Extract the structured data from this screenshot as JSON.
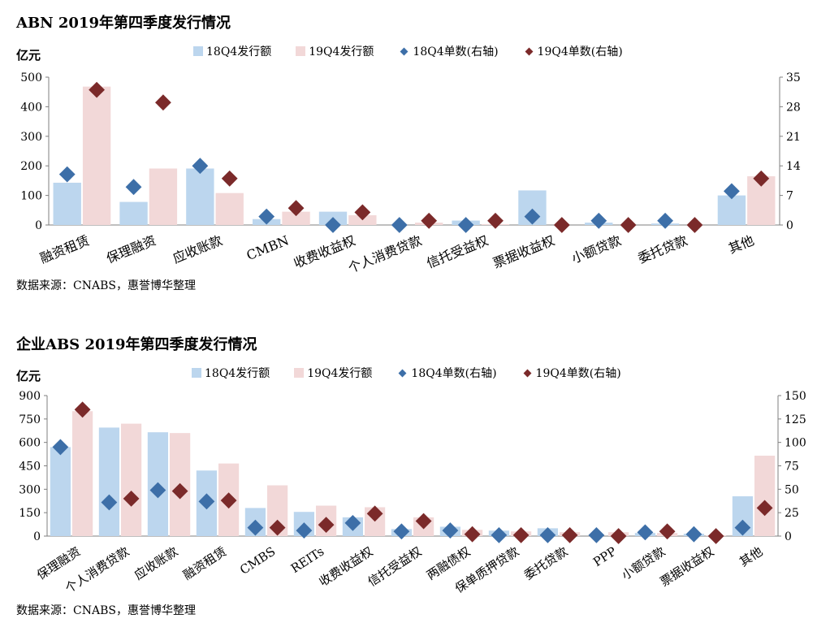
{
  "charts": [
    {
      "title": "ABN 2019年第四季度发行情况",
      "unit": "亿元",
      "source": "数据来源：CNABS，惠誉博华整理",
      "legend": [
        "18Q4发行额",
        "19Q4发行额",
        "18Q4单数(右轴)",
        "19Q4单数(右轴)"
      ]
    },
    {
      "title": "企业ABS 2019年第四季度发行情况",
      "unit": "亿元",
      "source": "数据来源：CNABS，惠誉博华整理",
      "legend": [
        "18Q4发行额",
        "19Q4发行额",
        "18Q4单数(右轴)",
        "19Q4单数(右轴)"
      ]
    }
  ],
  "colors": {
    "bar18": "#bcd6ee",
    "bar19": "#f2d8d8",
    "dot18": "#3d6fa8",
    "dot19": "#7b2a2a"
  },
  "chart_data": [
    {
      "type": "bar",
      "title": "ABN 2019年第四季度发行情况",
      "ylabel": "亿元",
      "categories": [
        "融资租赁",
        "保理融资",
        "应收账款",
        "CMBN",
        "收费收益权",
        "个人消费贷款",
        "信托受益权",
        "票据收益权",
        "小额贷款",
        "委托贷款",
        "其他"
      ],
      "series": [
        {
          "name": "18Q4发行额",
          "type": "bar",
          "axis": "left",
          "values": [
            143,
            78,
            191,
            20,
            45,
            0,
            15,
            117,
            8,
            5,
            100
          ]
        },
        {
          "name": "19Q4发行额",
          "type": "bar",
          "axis": "left",
          "values": [
            468,
            191,
            108,
            45,
            33,
            8,
            3,
            0,
            0,
            0,
            165
          ]
        },
        {
          "name": "18Q4单数(右轴)",
          "type": "scatter",
          "axis": "right",
          "values": [
            12,
            9,
            14,
            2,
            0,
            0,
            0,
            2,
            1,
            1,
            8
          ]
        },
        {
          "name": "19Q4单数(右轴)",
          "type": "scatter",
          "axis": "right",
          "values": [
            32,
            29,
            11,
            4,
            3,
            1,
            1,
            0,
            0,
            0,
            11
          ]
        }
      ],
      "ylim": [
        0,
        500
      ],
      "yticks": [
        0,
        100,
        200,
        300,
        400,
        500
      ],
      "y2lim": [
        0,
        35
      ],
      "y2ticks": [
        0,
        7,
        14,
        21,
        28,
        35
      ],
      "grid": false,
      "legend_position": "top"
    },
    {
      "type": "bar",
      "title": "企业ABS 2019年第四季度发行情况",
      "ylabel": "亿元",
      "categories": [
        "保理融资",
        "个人消费贷款",
        "应收账款",
        "融资租赁",
        "CMBS",
        "REITs",
        "收费收益权",
        "信托受益权",
        "两融债权",
        "保单质押贷款",
        "委托贷款",
        "PPP",
        "小额贷款",
        "票据收益权",
        "其他"
      ],
      "series": [
        {
          "name": "18Q4发行额",
          "type": "bar",
          "axis": "left",
          "values": [
            570,
            695,
            665,
            420,
            180,
            155,
            120,
            45,
            60,
            35,
            50,
            0,
            20,
            15,
            255
          ]
        },
        {
          "name": "19Q4发行额",
          "type": "bar",
          "axis": "left",
          "values": [
            800,
            720,
            660,
            465,
            325,
            195,
            185,
            120,
            40,
            30,
            25,
            25,
            20,
            5,
            515
          ]
        },
        {
          "name": "18Q4单数(右轴)",
          "type": "scatter",
          "axis": "right",
          "values": [
            95,
            36,
            49,
            37,
            9,
            6,
            14,
            5,
            6,
            1,
            1,
            1,
            4,
            2,
            9
          ]
        },
        {
          "name": "19Q4单数(右轴)",
          "type": "scatter",
          "axis": "right",
          "values": [
            135,
            40,
            48,
            38,
            9,
            12,
            24,
            16,
            2,
            1,
            1,
            0,
            5,
            0,
            30
          ]
        }
      ],
      "ylim": [
        0,
        900
      ],
      "yticks": [
        0,
        150,
        300,
        450,
        600,
        750,
        900
      ],
      "y2lim": [
        0,
        150
      ],
      "y2ticks": [
        0,
        25,
        50,
        75,
        100,
        125,
        150
      ],
      "grid": false,
      "legend_position": "top"
    }
  ]
}
